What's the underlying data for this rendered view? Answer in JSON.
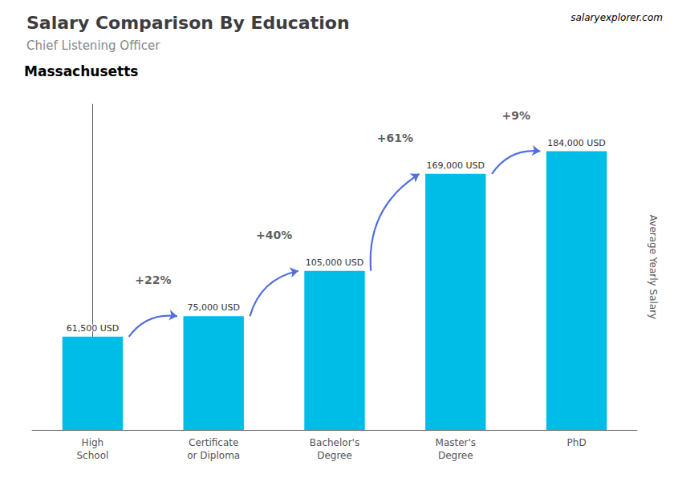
{
  "chart_data": {
    "type": "bar",
    "title": "Salary Comparison By Education",
    "subtitle": "Chief Listening Officer",
    "annotations": [
      {
        "text": "Massachusetts"
      },
      {
        "text": "salaryexplorer.com"
      },
      {
        "text": "+22%",
        "from": "High\nSchool",
        "to": "Certificate\nor Diploma"
      },
      {
        "text": "+40%",
        "from": "Certificate\nor Diploma",
        "to": "Bachelor's\nDegree"
      },
      {
        "text": "+61%",
        "from": "Bachelor's\nDegree",
        "to": "Master's\nDegree"
      },
      {
        "text": "+9%",
        "from": "Master's\nDegree",
        "to": "PhD"
      }
    ],
    "ylabel": "Average Yearly Salary",
    "categories": [
      "High\nSchool",
      "Certificate\nor Diploma",
      "Bachelor's\nDegree",
      "Master's\nDegree",
      "PhD"
    ],
    "values": [
      61500,
      75000,
      105000,
      169000,
      184000
    ],
    "value_labels": [
      "61,500 USD",
      "75,000 USD",
      "105,000 USD",
      "169,000 USD",
      "184,000 USD"
    ],
    "data_labels": true,
    "color": "#00bde8",
    "ylim": [
      0,
      215000
    ],
    "tick_labels": "x",
    "grid": false
  }
}
